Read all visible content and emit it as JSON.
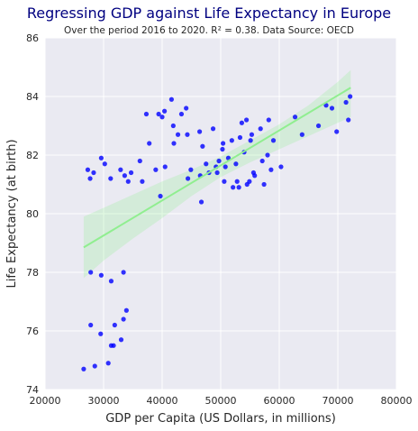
{
  "chart_data": {
    "type": "scatter",
    "title": "Regressing GDP against Life Expectancy in Europe",
    "subtitle": "Over the period 2016 to 2020. R² =  0.38. Data Source: OECD",
    "xlabel": "GDP per Capita (US Dollars, in millions)",
    "ylabel": "Life Expectancy (at birth)",
    "xlim": [
      20000,
      80000
    ],
    "ylim": [
      74,
      86
    ],
    "xticks": [
      20000,
      30000,
      40000,
      50000,
      60000,
      70000,
      80000
    ],
    "yticks": [
      74,
      76,
      78,
      80,
      82,
      84,
      86
    ],
    "grid": true,
    "colors": {
      "points": "#0000ff",
      "regression": "#90ee90",
      "background": "#eaeaf2",
      "grid": "#ffffff",
      "title": "#000080"
    },
    "regression": {
      "x": [
        26600,
        72200
      ],
      "y": [
        78.85,
        84.3
      ]
    },
    "confidence_band": {
      "x": [
        26600,
        30000,
        35000,
        40000,
        45000,
        50000,
        55000,
        60000,
        65000,
        70000,
        72200
      ],
      "upper": [
        79.9,
        80.2,
        80.65,
        81.1,
        81.5,
        81.95,
        82.5,
        83.05,
        83.7,
        84.5,
        84.9
      ],
      "lower": [
        77.8,
        78.4,
        79.15,
        79.85,
        80.6,
        81.25,
        81.75,
        82.2,
        82.65,
        83.1,
        83.3
      ]
    },
    "points": [
      {
        "x": 26600,
        "y": 74.7
      },
      {
        "x": 28500,
        "y": 74.8
      },
      {
        "x": 30800,
        "y": 74.9
      },
      {
        "x": 31300,
        "y": 75.5
      },
      {
        "x": 31700,
        "y": 75.5
      },
      {
        "x": 33000,
        "y": 75.7
      },
      {
        "x": 29500,
        "y": 75.9
      },
      {
        "x": 27800,
        "y": 76.2
      },
      {
        "x": 31900,
        "y": 76.2
      },
      {
        "x": 33400,
        "y": 76.4
      },
      {
        "x": 33900,
        "y": 76.7
      },
      {
        "x": 31300,
        "y": 77.7
      },
      {
        "x": 27800,
        "y": 78.0
      },
      {
        "x": 29600,
        "y": 77.9
      },
      {
        "x": 33400,
        "y": 78.0
      },
      {
        "x": 27300,
        "y": 81.5
      },
      {
        "x": 27700,
        "y": 81.2
      },
      {
        "x": 28300,
        "y": 81.4
      },
      {
        "x": 29600,
        "y": 81.9
      },
      {
        "x": 30200,
        "y": 81.7
      },
      {
        "x": 31200,
        "y": 81.2
      },
      {
        "x": 32900,
        "y": 81.5
      },
      {
        "x": 33600,
        "y": 81.3
      },
      {
        "x": 34200,
        "y": 81.1
      },
      {
        "x": 34700,
        "y": 81.4
      },
      {
        "x": 36200,
        "y": 81.8
      },
      {
        "x": 36600,
        "y": 81.1
      },
      {
        "x": 37300,
        "y": 83.4
      },
      {
        "x": 37800,
        "y": 82.4
      },
      {
        "x": 38900,
        "y": 81.5
      },
      {
        "x": 39400,
        "y": 83.4
      },
      {
        "x": 39700,
        "y": 80.6
      },
      {
        "x": 40000,
        "y": 83.3
      },
      {
        "x": 40400,
        "y": 83.5
      },
      {
        "x": 40500,
        "y": 81.6
      },
      {
        "x": 41600,
        "y": 83.9
      },
      {
        "x": 41900,
        "y": 83.0
      },
      {
        "x": 42000,
        "y": 82.4
      },
      {
        "x": 42700,
        "y": 82.7
      },
      {
        "x": 43300,
        "y": 83.4
      },
      {
        "x": 44100,
        "y": 83.6
      },
      {
        "x": 44300,
        "y": 82.7
      },
      {
        "x": 44400,
        "y": 81.2
      },
      {
        "x": 44900,
        "y": 81.5
      },
      {
        "x": 46400,
        "y": 82.8
      },
      {
        "x": 46500,
        "y": 81.3
      },
      {
        "x": 46700,
        "y": 80.4
      },
      {
        "x": 46900,
        "y": 82.3
      },
      {
        "x": 47500,
        "y": 81.7
      },
      {
        "x": 48000,
        "y": 81.4
      },
      {
        "x": 48700,
        "y": 82.9
      },
      {
        "x": 49200,
        "y": 81.6
      },
      {
        "x": 49400,
        "y": 81.4
      },
      {
        "x": 49700,
        "y": 81.8
      },
      {
        "x": 50300,
        "y": 82.2
      },
      {
        "x": 50400,
        "y": 82.4
      },
      {
        "x": 50600,
        "y": 81.1
      },
      {
        "x": 50800,
        "y": 81.6
      },
      {
        "x": 51300,
        "y": 81.9
      },
      {
        "x": 51900,
        "y": 82.5
      },
      {
        "x": 52100,
        "y": 80.9
      },
      {
        "x": 52600,
        "y": 81.7
      },
      {
        "x": 52800,
        "y": 81.1
      },
      {
        "x": 53100,
        "y": 80.9
      },
      {
        "x": 53300,
        "y": 82.6
      },
      {
        "x": 53600,
        "y": 83.1
      },
      {
        "x": 54000,
        "y": 82.1
      },
      {
        "x": 54400,
        "y": 83.2
      },
      {
        "x": 54500,
        "y": 81.0
      },
      {
        "x": 54900,
        "y": 81.1
      },
      {
        "x": 55100,
        "y": 82.5
      },
      {
        "x": 55300,
        "y": 82.7
      },
      {
        "x": 55600,
        "y": 81.4
      },
      {
        "x": 55800,
        "y": 81.3
      },
      {
        "x": 56800,
        "y": 82.9
      },
      {
        "x": 57100,
        "y": 81.8
      },
      {
        "x": 57400,
        "y": 81.0
      },
      {
        "x": 58000,
        "y": 82.0
      },
      {
        "x": 58200,
        "y": 83.2
      },
      {
        "x": 58600,
        "y": 81.5
      },
      {
        "x": 59000,
        "y": 82.5
      },
      {
        "x": 60300,
        "y": 81.6
      },
      {
        "x": 62700,
        "y": 83.3
      },
      {
        "x": 63900,
        "y": 82.7
      },
      {
        "x": 66700,
        "y": 83.0
      },
      {
        "x": 68000,
        "y": 83.7
      },
      {
        "x": 69000,
        "y": 83.6
      },
      {
        "x": 69800,
        "y": 82.8
      },
      {
        "x": 71400,
        "y": 83.8
      },
      {
        "x": 71800,
        "y": 83.2
      },
      {
        "x": 72100,
        "y": 84.0
      }
    ]
  }
}
